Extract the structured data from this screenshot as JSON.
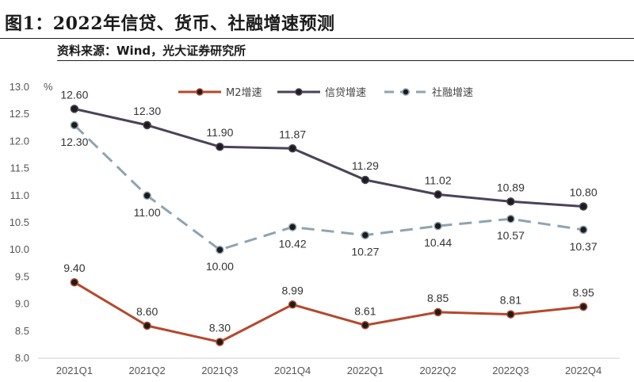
{
  "header": {
    "title": "图1：2022年信贷、货币、社融增速预测",
    "source": "资料来源：Wind，光大证券研究所"
  },
  "chart_data": {
    "type": "line",
    "categories": [
      "2021Q1",
      "2021Q2",
      "2021Q3",
      "2021Q4",
      "2022Q1",
      "2022Q2",
      "2022Q3",
      "2022Q4"
    ],
    "ylabel": "%",
    "ylim": [
      8.0,
      13.0
    ],
    "yticks": [
      "8.0",
      "8.5",
      "9.0",
      "9.5",
      "10.0",
      "10.5",
      "11.0",
      "11.5",
      "12.0",
      "12.5",
      "13.0"
    ],
    "grid": false,
    "legend_position": "top",
    "series": [
      {
        "name": "M2增速",
        "color": "#b5482b",
        "dash": "solid",
        "values": [
          9.4,
          8.6,
          8.3,
          8.99,
          8.61,
          8.85,
          8.81,
          8.95
        ],
        "labels": [
          "9.40",
          "8.60",
          "8.30",
          "8.99",
          "8.61",
          "8.85",
          "8.81",
          "8.95"
        ],
        "label_side": [
          "above",
          "above",
          "above",
          "above",
          "above",
          "above",
          "above",
          "above"
        ]
      },
      {
        "name": "信贷增速",
        "color": "#4a4358",
        "dash": "solid",
        "values": [
          12.6,
          12.3,
          11.9,
          11.87,
          11.29,
          11.02,
          10.89,
          10.8
        ],
        "labels": [
          "12.60",
          "12.30",
          "11.90",
          "11.87",
          "11.29",
          "11.02",
          "10.89",
          "10.80"
        ],
        "label_side": [
          "above",
          "above",
          "above",
          "above",
          "above",
          "above",
          "above",
          "above"
        ]
      },
      {
        "name": "社融增速",
        "color": "#8fa3b2",
        "dash": "dashed",
        "values": [
          12.3,
          11.0,
          10.0,
          10.42,
          10.27,
          10.44,
          10.57,
          10.37
        ],
        "labels": [
          "12.30",
          "11.00",
          "10.00",
          "10.42",
          "10.27",
          "10.44",
          "10.57",
          "10.37"
        ],
        "label_side": [
          "below",
          "below",
          "below",
          "below",
          "below",
          "below",
          "below",
          "below"
        ]
      }
    ]
  }
}
